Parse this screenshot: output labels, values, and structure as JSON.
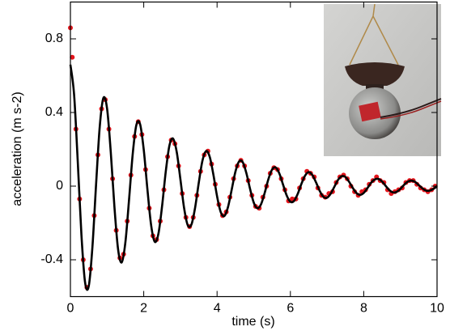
{
  "chart_data": {
    "type": "scatter",
    "xlabel": "time (s)",
    "ylabel": "acceleration (m s-2)",
    "xlim": [
      0,
      10
    ],
    "ylim": [
      -0.6,
      1.0
    ],
    "xticks": [
      0,
      2,
      4,
      6,
      8,
      10
    ],
    "yticks": [
      -0.4,
      0,
      0.4,
      0.8
    ],
    "series": [
      {
        "type": "scatter",
        "color": "#e3141b",
        "x": [
          0,
          0.05,
          0.15,
          0.25,
          0.35,
          0.45,
          0.55,
          0.65,
          0.75,
          0.85,
          0.95,
          1.05,
          1.15,
          1.25,
          1.35,
          1.45,
          1.55,
          1.65,
          1.75,
          1.85,
          1.95,
          2.05,
          2.15,
          2.25,
          2.35,
          2.45,
          2.55,
          2.65,
          2.75,
          2.85,
          2.95,
          3.05,
          3.15,
          3.25,
          3.35,
          3.45,
          3.55,
          3.65,
          3.75,
          3.85,
          3.95,
          4.05,
          4.15,
          4.25,
          4.35,
          4.45,
          4.55,
          4.65,
          4.75,
          4.85,
          4.95,
          5.05,
          5.15,
          5.25,
          5.35,
          5.45,
          5.55,
          5.65,
          5.75,
          5.85,
          5.95,
          6.05,
          6.15,
          6.25,
          6.35,
          6.45,
          6.55,
          6.65,
          6.75,
          6.85,
          6.95,
          7.05,
          7.15,
          7.25,
          7.35,
          7.45,
          7.55,
          7.65,
          7.75,
          7.85,
          7.95,
          8.05,
          8.15,
          8.25,
          8.35,
          8.45,
          8.55,
          8.65,
          8.75,
          8.85,
          8.95,
          9.05,
          9.15,
          9.25,
          9.35,
          9.45,
          9.55,
          9.65,
          9.75,
          9.85,
          9.95
        ],
        "values": [
          0.86,
          0.7,
          0.31,
          -0.07,
          -0.4,
          -0.55,
          -0.45,
          -0.16,
          0.17,
          0.42,
          0.47,
          0.31,
          0.04,
          -0.24,
          -0.39,
          -0.37,
          -0.19,
          0.06,
          0.27,
          0.35,
          0.28,
          0.09,
          -0.12,
          -0.27,
          -0.29,
          -0.19,
          -0.02,
          0.16,
          0.25,
          0.23,
          0.11,
          -0.04,
          -0.17,
          -0.22,
          -0.17,
          -0.05,
          0.08,
          0.17,
          0.19,
          0.12,
          0.01,
          -0.1,
          -0.16,
          -0.14,
          -0.06,
          0.04,
          0.11,
          0.14,
          0.11,
          0.03,
          -0.05,
          -0.11,
          -0.12,
          -0.06,
          0.0,
          0.07,
          0.1,
          0.09,
          0.04,
          -0.02,
          -0.08,
          -0.07,
          -0.07,
          -0.01,
          0.04,
          0.08,
          0.07,
          0.05,
          -0.01,
          -0.05,
          -0.06,
          -0.04,
          -0.03,
          0.02,
          0.05,
          0.06,
          0.04,
          0.0,
          -0.03,
          -0.05,
          -0.03,
          -0.02,
          0.01,
          0.03,
          0.05,
          0.03,
          0.02,
          -0.02,
          -0.04,
          -0.03,
          -0.02,
          -0.01,
          0.02,
          0.03,
          0.03,
          0.01,
          -0.01,
          -0.02,
          -0.03,
          -0.02,
          0.0
        ]
      },
      {
        "type": "line",
        "color": "#000000",
        "x": [
          0,
          0.1,
          0.2,
          0.3,
          0.4,
          0.5,
          0.6,
          0.7,
          0.8,
          0.9,
          1.0,
          1.1,
          1.2,
          1.3,
          1.4,
          1.5,
          1.6,
          1.7,
          1.8,
          1.9,
          2.0,
          2.1,
          2.2,
          2.3,
          2.4,
          2.5,
          2.6,
          2.7,
          2.8,
          2.9,
          3.0,
          3.1,
          3.2,
          3.3,
          3.4,
          3.5,
          3.6,
          3.7,
          3.8,
          3.9,
          4.0,
          4.1,
          4.2,
          4.3,
          4.4,
          4.5,
          4.6,
          4.7,
          4.8,
          4.9,
          5.0,
          5.1,
          5.2,
          5.3,
          5.4,
          5.5,
          5.6,
          5.7,
          5.8,
          5.9,
          6.0,
          6.1,
          6.2,
          6.3,
          6.4,
          6.5,
          6.6,
          6.7,
          6.8,
          6.9,
          7.0,
          7.1,
          7.2,
          7.3,
          7.4,
          7.5,
          7.6,
          7.7,
          7.8,
          7.9,
          8.0,
          8.1,
          8.2,
          8.3,
          8.4,
          8.5,
          8.6,
          8.7,
          8.8,
          8.9,
          9.0,
          9.1,
          9.2,
          9.3,
          9.4,
          9.5,
          9.6,
          9.7,
          9.8,
          9.9,
          10.0
        ],
        "values": [
          0.66,
          0.498,
          0.135,
          -0.263,
          -0.523,
          -0.543,
          -0.331,
          0.009,
          0.323,
          0.479,
          0.421,
          0.187,
          -0.111,
          -0.343,
          -0.414,
          -0.304,
          -0.072,
          0.176,
          0.333,
          0.337,
          0.198,
          -0.017,
          -0.21,
          -0.302,
          -0.259,
          -0.109,
          0.078,
          0.22,
          0.258,
          0.185,
          0.037,
          -0.118,
          -0.212,
          -0.209,
          -0.118,
          0.017,
          0.137,
          0.19,
          0.159,
          0.062,
          -0.055,
          -0.141,
          -0.162,
          -0.112,
          -0.018,
          0.078,
          0.134,
          0.13,
          0.07,
          -0.015,
          -0.089,
          -0.12,
          -0.098,
          -0.036,
          0.038,
          0.09,
          0.101,
          0.068,
          0.008,
          -0.051,
          -0.085,
          -0.08,
          -0.042,
          0.012,
          0.057,
          0.076,
          0.06,
          0.02,
          -0.026,
          -0.058,
          -0.063,
          -0.041,
          -0.003,
          0.034,
          0.054,
          0.05,
          0.024,
          -0.009,
          -0.037,
          -0.047,
          -0.037,
          -0.011,
          0.018,
          0.036,
          0.039,
          0.025,
          0.001,
          -0.022,
          -0.034,
          -0.031,
          -0.015,
          0.007,
          0.024,
          0.03,
          0.023,
          0.006,
          -0.012,
          -0.024,
          -0.024,
          -0.015,
          0.0
        ]
      }
    ]
  }
}
